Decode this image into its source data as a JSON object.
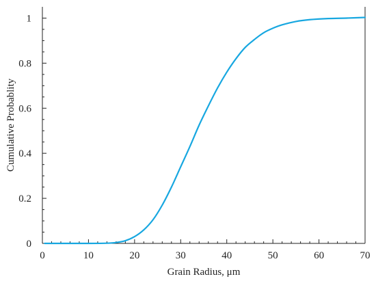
{
  "chart_data": {
    "type": "line",
    "title": "",
    "xlabel": "Grain Radius, μm",
    "ylabel": "Cumulative Probablity",
    "xlim": [
      0,
      70
    ],
    "ylim": [
      0,
      1.05
    ],
    "x_ticks": [
      0,
      10,
      20,
      30,
      40,
      50,
      60,
      70
    ],
    "x_tick_labels": [
      "0",
      "10",
      "20",
      "30",
      "40",
      "50",
      "60",
      "70"
    ],
    "y_ticks": [
      0,
      0.2,
      0.4,
      0.6,
      0.8,
      1
    ],
    "y_tick_labels": [
      "0",
      "0.2",
      "0.4",
      "0.6",
      "0.8",
      "1"
    ],
    "grid": false,
    "legend": "none",
    "line_color": "#17a7e0",
    "axis_color": "#222222",
    "series": [
      {
        "x": [
          0.5,
          5,
          10,
          14,
          16,
          18,
          20,
          22,
          24,
          26,
          28,
          30,
          32,
          34,
          36,
          38,
          40,
          42,
          44,
          46,
          48,
          50,
          52,
          55,
          58,
          62,
          66,
          70
        ],
        "y": [
          0,
          0,
          0,
          0.001,
          0.004,
          0.012,
          0.03,
          0.06,
          0.105,
          0.17,
          0.25,
          0.34,
          0.43,
          0.525,
          0.61,
          0.69,
          0.76,
          0.82,
          0.87,
          0.905,
          0.935,
          0.955,
          0.97,
          0.985,
          0.993,
          0.998,
          1.0,
          1.003
        ]
      }
    ]
  }
}
